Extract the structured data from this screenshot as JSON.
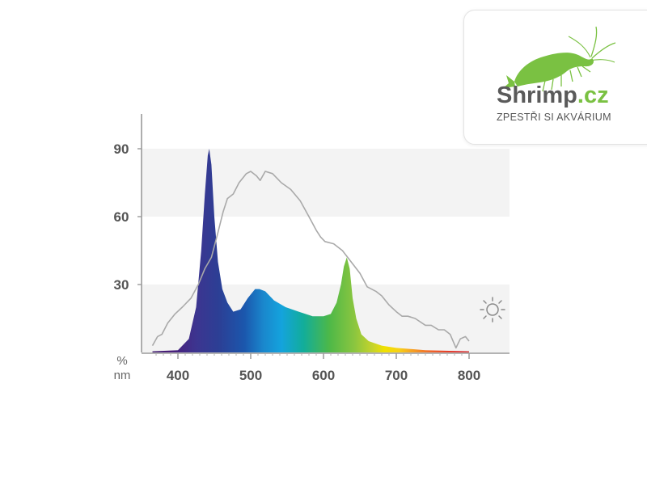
{
  "logo": {
    "brand_main": "Shrimp",
    "brand_tld": ".cz",
    "tagline": "ZPESTŘI SI AKVÁRIUM",
    "colors": {
      "main": "#5a5a5a",
      "accent": "#7ac142",
      "tagline": "#555555"
    },
    "icon": "shrimp-icon"
  },
  "chart_data": {
    "type": "area",
    "xlabel": "nm",
    "ylabel": "%",
    "xlim": [
      365,
      800
    ],
    "ylim": [
      0,
      100
    ],
    "x_ticks": [
      400,
      500,
      600,
      700,
      800
    ],
    "y_ticks": [
      30,
      60,
      90
    ],
    "grid": "alternating horizontal bands",
    "legend_icon": "sun-icon",
    "series": [
      {
        "kind": "led-spectrum",
        "fill": "visible-spectrum-gradient",
        "points": [
          [
            365,
            0.5
          ],
          [
            400,
            1
          ],
          [
            415,
            6
          ],
          [
            425,
            20
          ],
          [
            432,
            45
          ],
          [
            437,
            70
          ],
          [
            441,
            87
          ],
          [
            443,
            90
          ],
          [
            446,
            83
          ],
          [
            450,
            60
          ],
          [
            455,
            40
          ],
          [
            461,
            28
          ],
          [
            468,
            22
          ],
          [
            476,
            18
          ],
          [
            486,
            19
          ],
          [
            496,
            24
          ],
          [
            506,
            28
          ],
          [
            512,
            28
          ],
          [
            520,
            27
          ],
          [
            532,
            23
          ],
          [
            548,
            20
          ],
          [
            566,
            18
          ],
          [
            585,
            16
          ],
          [
            600,
            16
          ],
          [
            610,
            17
          ],
          [
            618,
            22
          ],
          [
            624,
            30
          ],
          [
            628,
            38
          ],
          [
            632,
            42
          ],
          [
            636,
            37
          ],
          [
            640,
            24
          ],
          [
            645,
            15
          ],
          [
            652,
            8
          ],
          [
            662,
            5
          ],
          [
            680,
            3
          ],
          [
            700,
            2
          ],
          [
            740,
            1
          ],
          [
            800,
            0.5
          ]
        ]
      },
      {
        "kind": "sunlight-reference",
        "color": "#a9a9a9",
        "points": [
          [
            365,
            3
          ],
          [
            372,
            7
          ],
          [
            378,
            8
          ],
          [
            386,
            13
          ],
          [
            396,
            17
          ],
          [
            406,
            20
          ],
          [
            418,
            24
          ],
          [
            428,
            30
          ],
          [
            437,
            37
          ],
          [
            446,
            42
          ],
          [
            455,
            53
          ],
          [
            462,
            62
          ],
          [
            468,
            68
          ],
          [
            476,
            70
          ],
          [
            484,
            75
          ],
          [
            494,
            79
          ],
          [
            500,
            80
          ],
          [
            508,
            78
          ],
          [
            513,
            76
          ],
          [
            520,
            80
          ],
          [
            530,
            79
          ],
          [
            542,
            75
          ],
          [
            555,
            72
          ],
          [
            568,
            67
          ],
          [
            580,
            60
          ],
          [
            590,
            54
          ],
          [
            596,
            51
          ],
          [
            602,
            49
          ],
          [
            614,
            48
          ],
          [
            626,
            45
          ],
          [
            638,
            40
          ],
          [
            650,
            35
          ],
          [
            660,
            29
          ],
          [
            672,
            27
          ],
          [
            680,
            25
          ],
          [
            690,
            21
          ],
          [
            700,
            18
          ],
          [
            708,
            16
          ],
          [
            716,
            16
          ],
          [
            726,
            15
          ],
          [
            740,
            12
          ],
          [
            748,
            12
          ],
          [
            758,
            10
          ],
          [
            766,
            10
          ],
          [
            774,
            8
          ],
          [
            782,
            2
          ],
          [
            788,
            6
          ],
          [
            795,
            7
          ],
          [
            800,
            5
          ]
        ]
      }
    ]
  }
}
